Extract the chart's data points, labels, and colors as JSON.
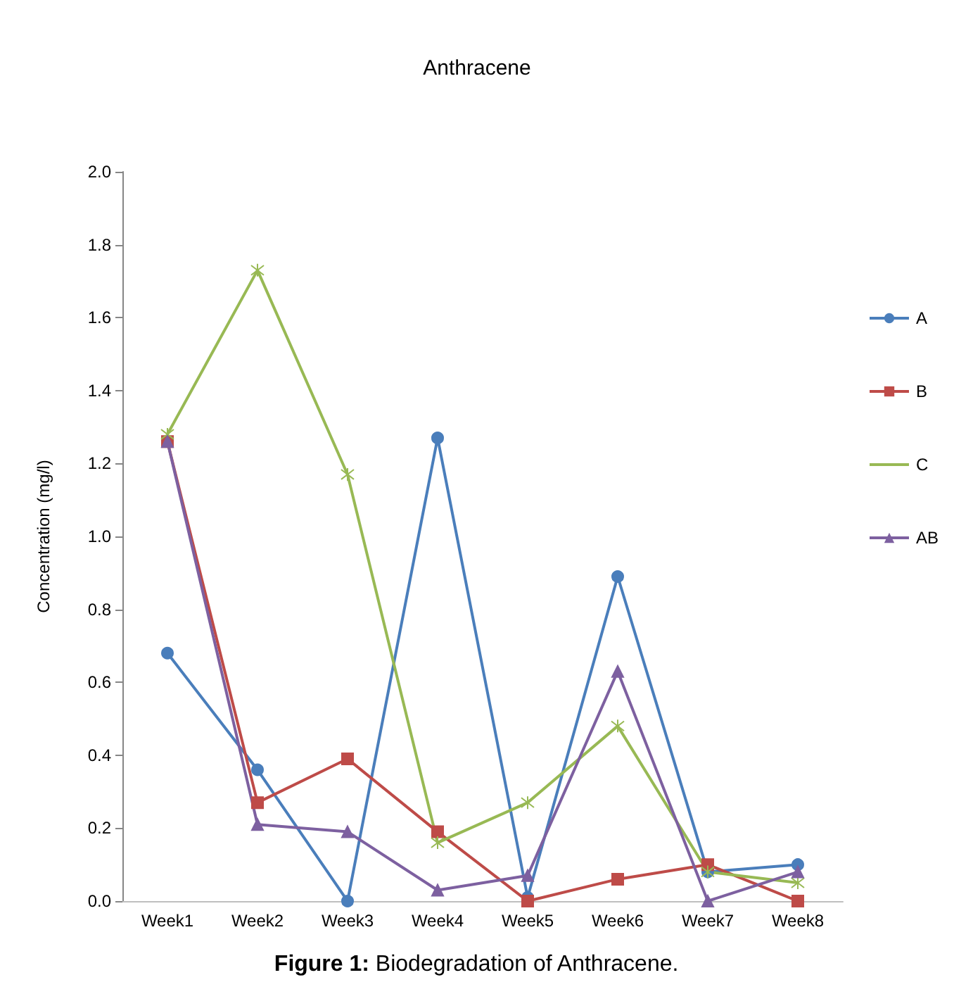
{
  "chart_data": {
    "type": "line",
    "title": "Anthracene",
    "ylabel": "Concentration (mg/l)",
    "categories": [
      "Week1",
      "Week2",
      "Week3",
      "Week4",
      "Week5",
      "Week6",
      "Week7",
      "Week8"
    ],
    "series": [
      {
        "name": "A",
        "color": "#4a7ebb",
        "marker": "circle",
        "values": [
          0.68,
          0.36,
          0,
          1.27,
          0.01,
          0.89,
          0.08,
          0.1
        ]
      },
      {
        "name": "B",
        "color": "#be4b48",
        "marker": "square",
        "values": [
          1.26,
          0.27,
          0.39,
          0.19,
          0,
          0.06,
          0.1,
          0
        ]
      },
      {
        "name": "C",
        "color": "#98b954",
        "marker": "cross",
        "values": [
          1.28,
          1.73,
          1.17,
          0.16,
          0.27,
          0.48,
          0.08,
          0.05
        ]
      },
      {
        "name": "AB",
        "color": "#7d60a0",
        "marker": "triangle",
        "values": [
          1.26,
          0.21,
          0.19,
          0.03,
          0.07,
          0.63,
          0,
          0.08
        ]
      }
    ],
    "ylim": [
      0,
      2
    ],
    "yticks": [
      {
        "value": 0,
        "label": "0.0"
      },
      0.2,
      0.4,
      0.6,
      0.8,
      {
        "value": 1,
        "label": "1.0"
      },
      1.2,
      1.4,
      1.6,
      1.8,
      {
        "value": 2,
        "label": "2.0"
      }
    ],
    "grid": false,
    "legend": "right",
    "annotations": [
      "Figure 1: Biodegradation of Anthracene."
    ]
  }
}
